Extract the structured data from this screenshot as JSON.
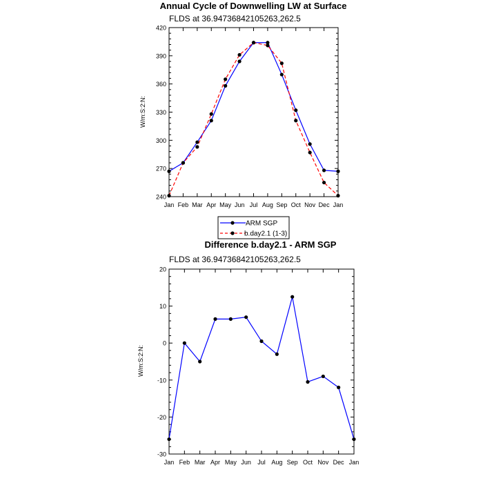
{
  "chart_data": [
    {
      "type": "line",
      "title": "Annual Cycle of Downwelling LW at Surface",
      "subtitle": "FLDS at 36.94736842105263,262.5",
      "ylabel": "W/m:S:2:N:",
      "categories": [
        "Jan",
        "Feb",
        "Mar",
        "Apr",
        "May",
        "Jun",
        "Jul",
        "Aug",
        "Sep",
        "Oct",
        "Nov",
        "Dec",
        "Jan"
      ],
      "ylim": [
        240,
        420
      ],
      "yticks": [
        240,
        270,
        300,
        330,
        360,
        390,
        420
      ],
      "grid": false,
      "legend_position": "below",
      "series": [
        {
          "name": "ARM SGP",
          "color": "#0000ff",
          "dash": "solid",
          "values": [
            267,
            276,
            298,
            321,
            358,
            384,
            404,
            404,
            370,
            332,
            296,
            268,
            267
          ]
        },
        {
          "name": "b.day2.1 (1-3)",
          "color": "#ff0000",
          "dash": "dashed",
          "values": [
            241,
            276,
            293,
            328,
            365,
            391,
            404,
            401,
            382,
            321,
            287,
            255,
            241
          ]
        }
      ]
    },
    {
      "type": "line",
      "title": "Difference b.day2.1 - ARM SGP",
      "subtitle": "FLDS at 36.94736842105263,262.5",
      "ylabel": "W/m:S:2:N:",
      "categories": [
        "Jan",
        "Feb",
        "Mar",
        "Apr",
        "May",
        "Jun",
        "Jul",
        "Aug",
        "Sep",
        "Oct",
        "Nov",
        "Dec",
        "Jan"
      ],
      "ylim": [
        -30,
        20
      ],
      "yticks": [
        -30,
        -20,
        -10,
        0,
        10,
        20
      ],
      "grid": false,
      "series": [
        {
          "color": "#0000ff",
          "dash": "solid",
          "values": [
            -26,
            0,
            -5,
            6.5,
            6.5,
            7,
            0.5,
            -3,
            12.5,
            -10.5,
            -9,
            -12,
            -26
          ]
        }
      ]
    }
  ]
}
